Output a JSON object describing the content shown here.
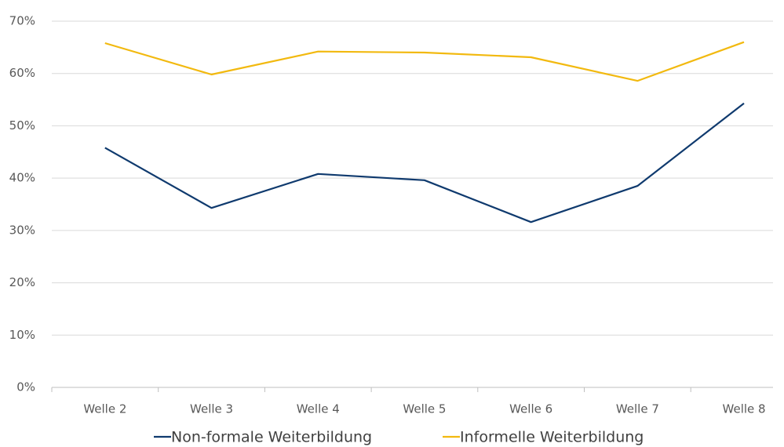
{
  "chart_data": {
    "type": "line",
    "categories": [
      "Welle 2",
      "Welle 3",
      "Welle 4",
      "Welle 5",
      "Welle 6",
      "Welle 7",
      "Welle 8"
    ],
    "series": [
      {
        "name": "Non-formale Weiterbildung",
        "color": "#0f3a6e",
        "values": [
          45.8,
          34.3,
          40.8,
          39.6,
          31.6,
          38.5,
          54.3
        ]
      },
      {
        "name": "Informelle Weiterbildung",
        "color": "#f2b90f",
        "values": [
          65.8,
          59.8,
          64.2,
          64.0,
          63.1,
          58.6,
          66.0
        ]
      }
    ],
    "ylim": [
      0,
      70
    ],
    "yticks": [
      {
        "value": 0,
        "label": "0%"
      },
      {
        "value": 10,
        "label": "10%"
      },
      {
        "value": 20,
        "label": "20%"
      },
      {
        "value": 30,
        "label": "30%"
      },
      {
        "value": 40,
        "label": "40%"
      },
      {
        "value": 50,
        "label": "50%"
      },
      {
        "value": 60,
        "label": "60%"
      },
      {
        "value": 70,
        "label": "70%"
      }
    ],
    "grid": true,
    "legend": "bottom"
  }
}
